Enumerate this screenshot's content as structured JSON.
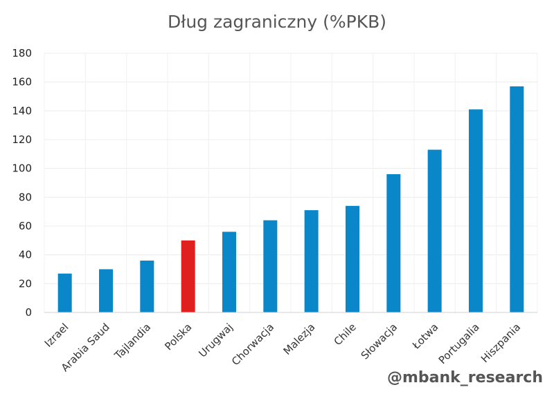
{
  "chart_data": {
    "type": "bar",
    "title": "Dług zagraniczny (%PKB)",
    "xlabel": "",
    "ylabel": "",
    "ylim": [
      0,
      180
    ],
    "yticks": [
      0,
      20,
      40,
      60,
      80,
      100,
      120,
      140,
      160,
      180
    ],
    "categories": [
      "Izrael",
      "Arabia Saud",
      "Tajlandia",
      "Polska",
      "Urugwaj",
      "Chorwacja",
      "Malezja",
      "Chile",
      "Słowacja",
      "Łotwa",
      "Portugalia",
      "Hiszpania"
    ],
    "values": [
      27,
      30,
      36,
      50,
      56,
      64,
      71,
      74,
      96,
      113,
      141,
      157
    ],
    "bar_color": "#0a87c9",
    "highlight_category": "Polska",
    "highlight_color": "#e0201e",
    "grid": true,
    "legend": "none"
  },
  "watermark": "@mbank_research"
}
